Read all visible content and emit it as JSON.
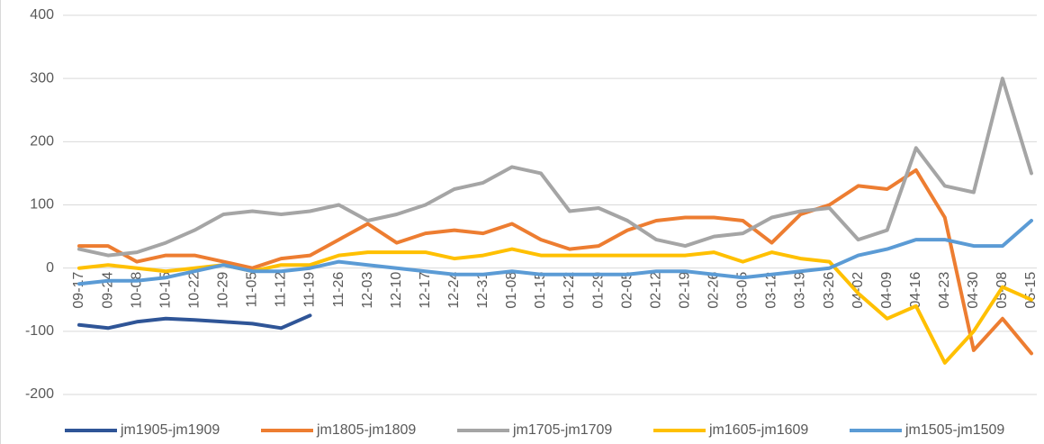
{
  "chart_data": {
    "type": "line",
    "categories": [
      "09-17",
      "09-24",
      "10-08",
      "10-15",
      "10-22",
      "10-29",
      "11-05",
      "11-12",
      "11-19",
      "11-26",
      "12-03",
      "12-10",
      "12-17",
      "12-24",
      "12-31",
      "01-08",
      "01-15",
      "01-22",
      "01-29",
      "02-05",
      "02-12",
      "02-19",
      "02-26",
      "03-05",
      "03-12",
      "03-19",
      "03-26",
      "04-02",
      "04-09",
      "04-16",
      "04-23",
      "04-30",
      "05-08",
      "05-15"
    ],
    "series": [
      {
        "name": "jm1905-jm1909",
        "color": "#2f5597",
        "values": [
          -90,
          -95,
          -85,
          -80,
          -82,
          -85,
          -88,
          -95,
          -75,
          null,
          null,
          null,
          null,
          null,
          null,
          null,
          null,
          null,
          null,
          null,
          null,
          null,
          null,
          null,
          null,
          null,
          null,
          null,
          null,
          null,
          null,
          null,
          null,
          null
        ]
      },
      {
        "name": "jm1805-jm1809",
        "color": "#ed7d31",
        "values": [
          35,
          35,
          10,
          20,
          20,
          10,
          0,
          15,
          20,
          45,
          70,
          40,
          55,
          60,
          55,
          70,
          45,
          30,
          35,
          60,
          75,
          80,
          80,
          75,
          40,
          85,
          100,
          130,
          125,
          155,
          80,
          -130,
          -80,
          -135
        ]
      },
      {
        "name": "jm1705-jm1709",
        "color": "#a5a5a5",
        "values": [
          30,
          20,
          25,
          40,
          60,
          85,
          90,
          85,
          90,
          100,
          75,
          85,
          100,
          125,
          135,
          160,
          150,
          90,
          95,
          75,
          45,
          35,
          50,
          55,
          80,
          90,
          95,
          45,
          60,
          190,
          130,
          120,
          300,
          150
        ]
      },
      {
        "name": "jm1605-jm1609",
        "color": "#ffc000",
        "values": [
          0,
          5,
          0,
          -5,
          0,
          5,
          -5,
          5,
          5,
          20,
          25,
          25,
          25,
          15,
          20,
          30,
          20,
          20,
          20,
          20,
          20,
          20,
          25,
          10,
          25,
          15,
          10,
          -40,
          -80,
          -60,
          -150,
          -100,
          -30,
          -50
        ]
      },
      {
        "name": "jm1505-jm1509",
        "color": "#5b9bd5",
        "values": [
          -25,
          -20,
          -20,
          -15,
          -5,
          5,
          -5,
          -5,
          0,
          10,
          5,
          0,
          -5,
          -10,
          -10,
          -5,
          -10,
          -10,
          -10,
          -10,
          -5,
          -5,
          -10,
          -15,
          -10,
          -5,
          0,
          20,
          30,
          45,
          45,
          35,
          35,
          75
        ]
      }
    ],
    "ylim": [
      -200,
      400
    ],
    "yticks": [
      -200,
      -100,
      0,
      100,
      200,
      300,
      400
    ],
    "grid": true
  }
}
